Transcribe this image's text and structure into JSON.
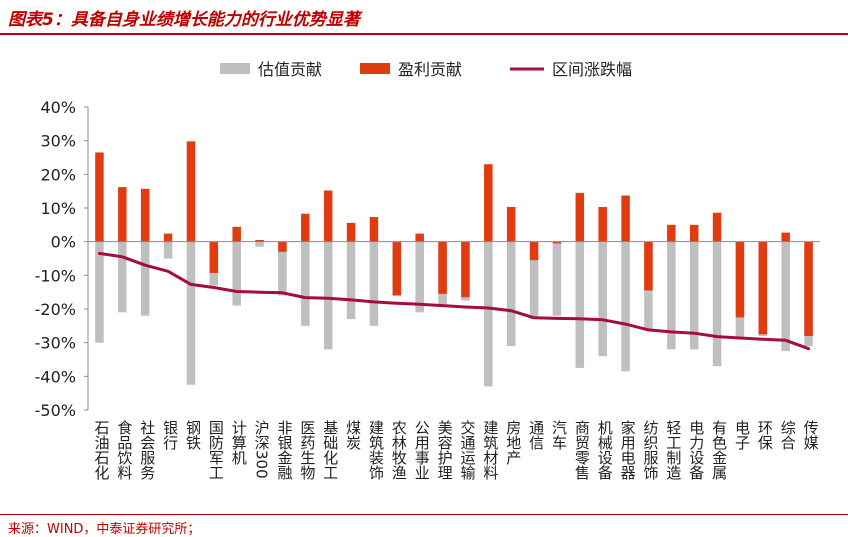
{
  "title": "图表5：具备自身业绩增长能力的行业优势显著",
  "source": "来源：WIND，中泰证券研究所；",
  "colors": {
    "valuation": "#bfbfbf",
    "earnings": "#e03c0f",
    "change": "#a50d3a",
    "title": "#c00000"
  },
  "chart_data": {
    "type": "bar",
    "legend": [
      "估值贡献",
      "盈利贡献",
      "区间涨跌幅"
    ],
    "legend_position": "top",
    "ylim": [
      -50,
      40
    ],
    "yticks": [
      "40%",
      "30%",
      "20%",
      "10%",
      "0%",
      "-10%",
      "-20%",
      "-30%",
      "-40%",
      "-50%"
    ],
    "tick_values": [
      40,
      30,
      20,
      10,
      0,
      -10,
      -20,
      -30,
      -40,
      -50
    ],
    "categories": [
      "石油石化",
      "食品饮料",
      "社会服务",
      "银行",
      "钢铁",
      "国防军工",
      "计算机",
      "沪深300",
      "非银金融",
      "医药生物",
      "基础化工",
      "煤炭",
      "建筑装饰",
      "农林牧渔",
      "公用事业",
      "美容护理",
      "交通运输",
      "建筑材料",
      "房地产",
      "通信",
      "汽车",
      "商贸零售",
      "机械设备",
      "家用电器",
      "纺织服饰",
      "轻工制造",
      "电力设备",
      "有色金属",
      "电子",
      "环保",
      "综合",
      "传媒"
    ],
    "series": [
      {
        "name": "估值贡献",
        "type": "bar",
        "values": [
          -30,
          -21,
          -22,
          -5,
          -42.5,
          -13,
          -19,
          -1.5,
          -16,
          -25,
          -32,
          -23,
          -25,
          -16,
          -21,
          -19,
          -17.5,
          -43,
          -31,
          -23,
          -22,
          -37.5,
          -34,
          -38.5,
          -26,
          -32,
          -32,
          -37,
          -29,
          -28,
          -32.5,
          -31
        ]
      },
      {
        "name": "盈利贡献",
        "type": "bar",
        "values": [
          26.5,
          16.2,
          15.7,
          2.4,
          29.8,
          -9.3,
          4.4,
          0.5,
          -3,
          8.3,
          15.2,
          5.6,
          7.3,
          -16,
          2.4,
          -15.5,
          -16.5,
          23,
          10.3,
          -5.5,
          -0.5,
          14.5,
          10.3,
          13.7,
          -14.5,
          5,
          5,
          8.6,
          -22.5,
          -27.5,
          2.7,
          -28
        ]
      },
      {
        "name": "区间涨跌幅",
        "type": "line",
        "values": [
          -3.5,
          -4.5,
          -7,
          -8.8,
          -12.7,
          -13.6,
          -14.8,
          -15,
          -15.2,
          -16.6,
          -16.8,
          -17.3,
          -17.9,
          -18.3,
          -18.6,
          -19,
          -19.4,
          -19.7,
          -20.5,
          -22.6,
          -22.8,
          -22.9,
          -23.2,
          -24.5,
          -26.2,
          -26.8,
          -27.2,
          -28.2,
          -28.6,
          -29,
          -29.3,
          -31.8
        ]
      }
    ]
  }
}
